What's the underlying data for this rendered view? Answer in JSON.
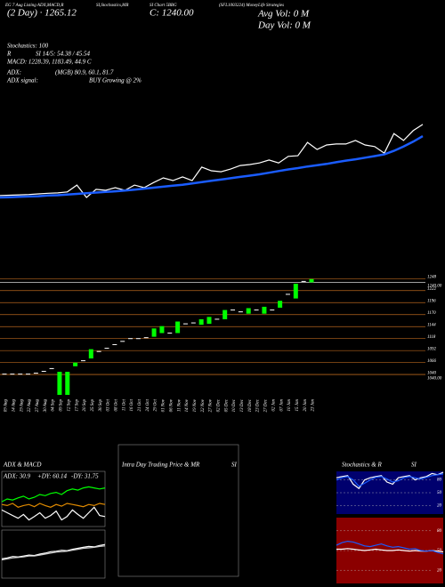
{
  "header": {
    "top": [
      "EG 7 Aug Listing ADX,MACD,R",
      "SI,Stochastics,MR",
      "SI Chart 5BBG",
      "(SFL1003224) MoneyLife Strategies"
    ],
    "period": "(2 Day) · 1265.12",
    "close": "C: 1240.00",
    "avg_vol": "Avg Vol: 0   M",
    "day_vol": "Day Vol: 0   M",
    "lines": [
      "Stochastics: 100",
      "R",
      "SI 14/5: 54.38 / 45.54",
      "MACD: 1228.39, 1183.49, 44.9 C",
      "ADX:",
      "(MGB) 80.9, 60.1, 81.7",
      "ADX  signal:",
      "BUY Growing @ 2%"
    ]
  },
  "chart_data": [
    {
      "type": "line",
      "ylim": [
        1000,
        1300
      ],
      "series": [
        {
          "color": "#ffffff",
          "values": [
            1055,
            1056,
            1057,
            1058,
            1060,
            1062,
            1063,
            1066,
            1087,
            1049,
            1074,
            1071,
            1079,
            1071,
            1087,
            1079,
            1095,
            1109,
            1101,
            1112,
            1101,
            1142,
            1131,
            1128,
            1136,
            1147,
            1150,
            1155,
            1164,
            1155,
            1175,
            1177,
            1218,
            1196,
            1210,
            1213,
            1213,
            1224,
            1210,
            1205,
            1185,
            1245,
            1224,
            1254,
            1273
          ]
        },
        {
          "color": "#1a5cff",
          "values": [
            1049,
            1050,
            1051,
            1052,
            1053,
            1055,
            1056,
            1058,
            1060,
            1062,
            1064,
            1066,
            1068,
            1070,
            1073,
            1076,
            1079,
            1082,
            1085,
            1088,
            1092,
            1096,
            1100,
            1104,
            1108,
            1112,
            1116,
            1120,
            1125,
            1130,
            1135,
            1139,
            1144,
            1148,
            1152,
            1157,
            1162,
            1166,
            1171,
            1176,
            1181,
            1192,
            1205,
            1220,
            1237
          ]
        }
      ]
    },
    {
      "type": "candlestick",
      "ylim": [
        994,
        1264
      ],
      "up_color": "#00ff00",
      "flat_color": "#ffffff",
      "grid_color": "#b5651d",
      "close_line_color": "#ffffff",
      "yticks": [
        1248,
        {
          "value": 1240,
          "label": "1240.00"
        },
        1222,
        1196,
        1170,
        1144,
        1118,
        1092,
        1066,
        1040,
        {
          "value": 1040,
          "label": "1040.00"
        }
      ],
      "categories": [
        "09 Aug",
        "14 Aug",
        "19 Aug",
        "22 Aug",
        "27 Aug",
        "30 Aug",
        "04 Sep",
        "09 Sep",
        "12 Sep",
        "17 Sep",
        "20 Sep",
        "25 Sep",
        "30 Sep",
        "03 Oct",
        "08 Oct",
        "11 Oct",
        "16 Oct",
        "21 Oct",
        "24 Oct",
        "29 Oct",
        "01 Nov",
        "06 Nov",
        "11 Nov",
        "14 Nov",
        "19 Nov",
        "22 Nov",
        "27 Nov",
        "02 Dec",
        "05 Dec",
        "10 Dec",
        "13 Dec",
        "18 Dec",
        "23 Dec",
        "27 Dec",
        "02 Jan",
        "07 Jan",
        "10 Jan",
        "15 Jan",
        "20 Jan",
        "23 Jan"
      ],
      "open": [
        1041,
        1041,
        1041,
        1041,
        1043,
        1047,
        1053,
        1046,
        1046,
        1066,
        1070,
        1095,
        1090,
        1097,
        1105,
        1112,
        1118,
        1118,
        1120,
        1140,
        1145,
        1130,
        1155,
        1150,
        1152,
        1160,
        1165,
        1160,
        1180,
        1180,
        1176,
        1184,
        1180,
        1187,
        1180,
        1200,
        1214,
        1237,
        1242,
        1247
      ],
      "close": [
        1041,
        1041,
        1041,
        1041,
        1043,
        1047,
        1053,
        996,
        996,
        1058,
        1070,
        1075,
        1090,
        1097,
        1105,
        1112,
        1118,
        1118,
        1120,
        1122,
        1130,
        1130,
        1130,
        1150,
        1152,
        1148,
        1150,
        1160,
        1160,
        1180,
        1176,
        1172,
        1180,
        1172,
        1180,
        1185,
        1214,
        1205,
        1242,
        1240
      ]
    },
    {
      "type": "line",
      "title": "ADX  & MACD",
      "ylim": [
        0,
        100
      ],
      "background": "#000000",
      "annotations": [
        "ADX: 30.9",
        "+DY: 60.14",
        "-DY: 31.75"
      ],
      "series": [
        {
          "color": "#00ff00",
          "values": [
            45,
            50,
            48,
            52,
            55,
            50,
            53,
            58,
            56,
            60,
            62,
            58,
            65,
            68,
            66,
            70,
            72,
            70,
            68,
            70
          ]
        },
        {
          "color": "#e08a00",
          "values": [
            40,
            38,
            42,
            35,
            38,
            40,
            36,
            42,
            38,
            35,
            40,
            37,
            42,
            40,
            38,
            36,
            40,
            38,
            42,
            40
          ]
        },
        {
          "color": "#ffffff",
          "values": [
            30,
            25,
            20,
            15,
            22,
            12,
            18,
            25,
            15,
            20,
            28,
            12,
            18,
            30,
            22,
            15,
            25,
            35,
            20,
            18
          ]
        }
      ]
    },
    {
      "type": "line",
      "ylim": [
        0,
        100
      ],
      "background": "#000000",
      "series": [
        {
          "color": "#ffffff",
          "values": [
            40,
            42,
            45,
            44,
            46,
            48,
            47,
            50,
            52,
            55,
            56,
            58,
            57,
            60,
            62,
            64,
            66,
            65,
            68,
            70
          ]
        },
        {
          "color": "#cccccc",
          "values": [
            38,
            40,
            42,
            43,
            44,
            46,
            46,
            48,
            50,
            52,
            54,
            55,
            56,
            58,
            60,
            62,
            63,
            64,
            66,
            67
          ]
        }
      ]
    },
    {
      "type": "line",
      "title": "Intra  Day Trading Price  & MR",
      "subtitle": "SI",
      "background": "#000000"
    },
    {
      "type": "line",
      "title": "Stochastics & R",
      "subtitle": "SI",
      "ylim": [
        0,
        100
      ],
      "yticks": [
        20,
        50,
        80
      ],
      "background": "#00006e",
      "series": [
        {
          "color": "#ffffff",
          "values": [
            85,
            88,
            90,
            70,
            60,
            80,
            85,
            88,
            90,
            75,
            70,
            85,
            88,
            90,
            80,
            85,
            88,
            95,
            92,
            98
          ]
        },
        {
          "color": "#1a5cff",
          "values": [
            80,
            85,
            88,
            80,
            65,
            72,
            80,
            86,
            88,
            82,
            75,
            78,
            85,
            88,
            85,
            82,
            86,
            90,
            92,
            94
          ]
        }
      ]
    },
    {
      "type": "line",
      "ylim": [
        0,
        100
      ],
      "yticks": [
        20,
        50,
        80
      ],
      "background": "#8b0000",
      "series": [
        {
          "color": "#ffffff",
          "values": [
            52,
            52,
            53,
            52,
            51,
            50,
            51,
            52,
            51,
            50,
            50,
            51,
            50,
            49,
            50,
            49,
            49,
            50,
            49,
            48
          ]
        },
        {
          "color": "#1a5cff",
          "values": [
            58,
            62,
            64,
            63,
            60,
            57,
            56,
            58,
            60,
            57,
            55,
            56,
            54,
            52,
            53,
            50,
            49,
            50,
            47,
            45
          ]
        }
      ]
    }
  ]
}
